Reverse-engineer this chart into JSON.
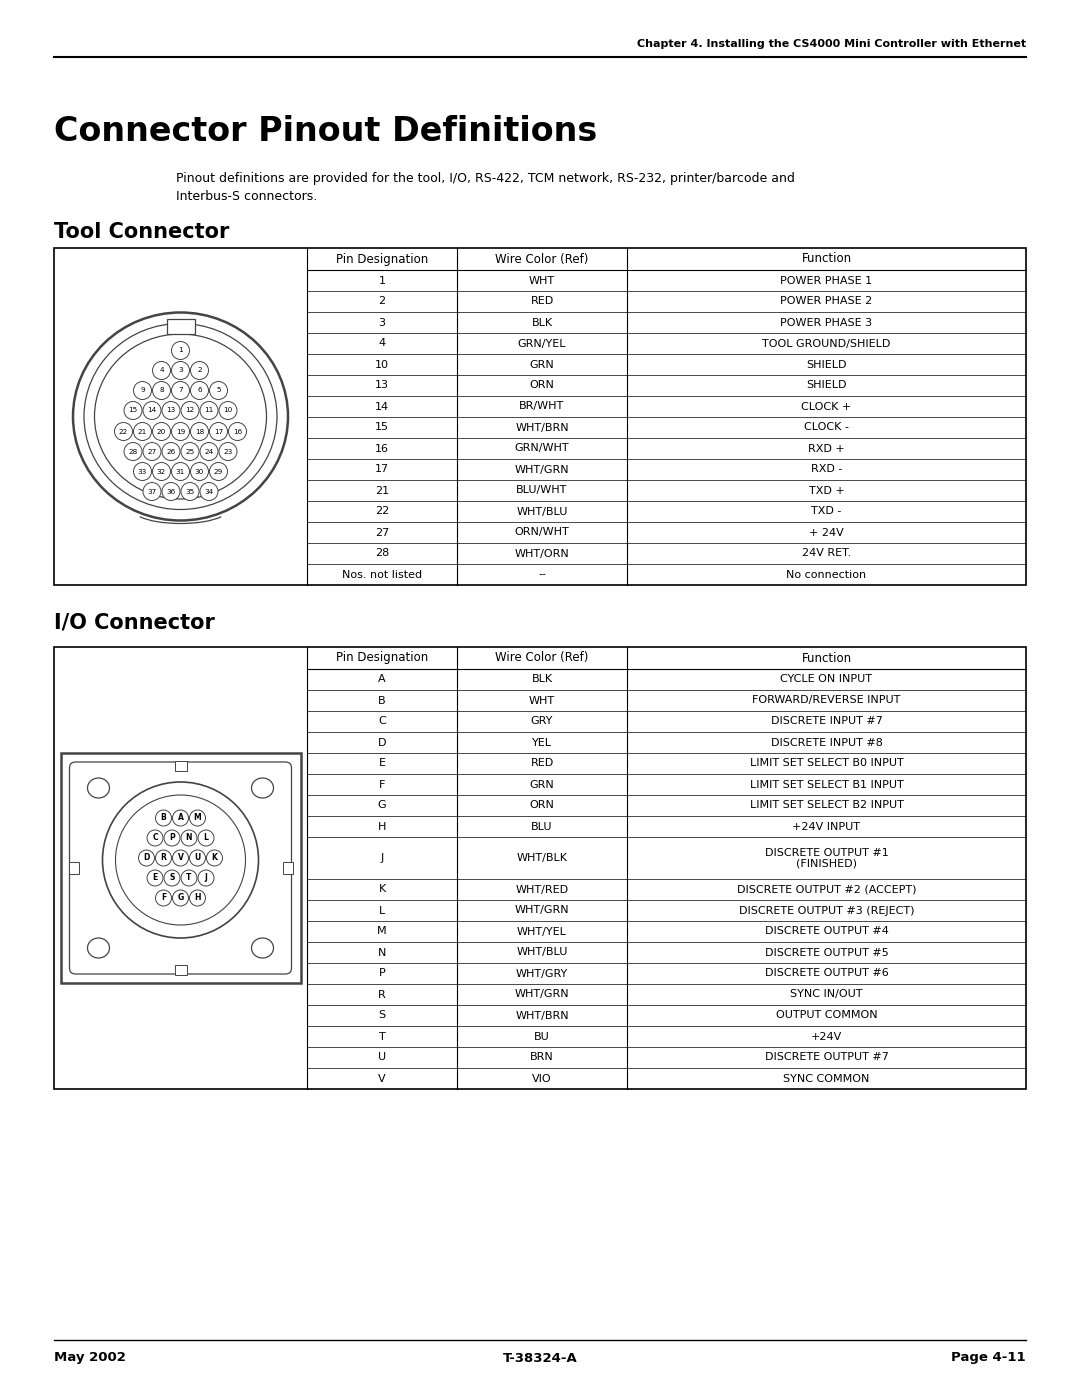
{
  "header_chapter": "Chapter 4. Installing the CS4000 Mini Controller with Ethernet",
  "title": "Connector Pinout Definitions",
  "subtitle_line1": "Pinout definitions are provided for the tool, I/O, RS-422, TCM network, RS-232, printer/barcode and",
  "subtitle_line2": "Interbus-S connectors.",
  "tool_connector_title": "Tool Connector",
  "tool_table_headers": [
    "Pin Designation",
    "Wire Color (Ref)",
    "Function"
  ],
  "tool_table_rows": [
    [
      "1",
      "WHT",
      "POWER PHASE 1"
    ],
    [
      "2",
      "RED",
      "POWER PHASE 2"
    ],
    [
      "3",
      "BLK",
      "POWER PHASE 3"
    ],
    [
      "4",
      "GRN/YEL",
      "TOOL GROUND/SHIELD"
    ],
    [
      "10",
      "GRN",
      "SHIELD"
    ],
    [
      "13",
      "ORN",
      "SHIELD"
    ],
    [
      "14",
      "BR/WHT",
      "CLOCK +"
    ],
    [
      "15",
      "WHT/BRN",
      "CLOCK -"
    ],
    [
      "16",
      "GRN/WHT",
      "RXD +"
    ],
    [
      "17",
      "WHT/GRN",
      "RXD -"
    ],
    [
      "21",
      "BLU/WHT",
      "TXD +"
    ],
    [
      "22",
      "WHT/BLU",
      "TXD -"
    ],
    [
      "27",
      "ORN/WHT",
      "+ 24V"
    ],
    [
      "28",
      "WHT/ORN",
      "24V RET."
    ],
    [
      "Nos. not listed",
      "--",
      "No connection"
    ]
  ],
  "io_connector_title": "I/O Connector",
  "io_table_headers": [
    "Pin Designation",
    "Wire Color (Ref)",
    "Function"
  ],
  "io_table_rows": [
    [
      "A",
      "BLK",
      "CYCLE ON INPUT"
    ],
    [
      "B",
      "WHT",
      "FORWARD/REVERSE INPUT"
    ],
    [
      "C",
      "GRY",
      "DISCRETE INPUT #7"
    ],
    [
      "D",
      "YEL",
      "DISCRETE INPUT #8"
    ],
    [
      "E",
      "RED",
      "LIMIT SET SELECT B0 INPUT"
    ],
    [
      "F",
      "GRN",
      "LIMIT SET SELECT B1 INPUT"
    ],
    [
      "G",
      "ORN",
      "LIMIT SET SELECT B2 INPUT"
    ],
    [
      "H",
      "BLU",
      "+24V INPUT"
    ],
    [
      "J",
      "WHT/BLK",
      "DISCRETE OUTPUT #1\n(FINISHED)"
    ],
    [
      "K",
      "WHT/RED",
      "DISCRETE OUTPUT #2 (ACCEPT)"
    ],
    [
      "L",
      "WHT/GRN",
      "DISCRETE OUTPUT #3 (REJECT)"
    ],
    [
      "M",
      "WHT/YEL",
      "DISCRETE OUTPUT #4"
    ],
    [
      "N",
      "WHT/BLU",
      "DISCRETE OUTPUT #5"
    ],
    [
      "P",
      "WHT/GRY",
      "DISCRETE OUTPUT #6"
    ],
    [
      "R",
      "WHT/GRN",
      "SYNC IN/OUT"
    ],
    [
      "S",
      "WHT/BRN",
      "OUTPUT COMMON"
    ],
    [
      "T",
      "BU",
      "+24V"
    ],
    [
      "U",
      "BRN",
      "DISCRETE OUTPUT #7"
    ],
    [
      "V",
      "VIO",
      "SYNC COMMON"
    ]
  ],
  "footer_left": "May 2002",
  "footer_center": "T-38324-A",
  "footer_right": "Page 4-11",
  "bg_color": "#ffffff"
}
